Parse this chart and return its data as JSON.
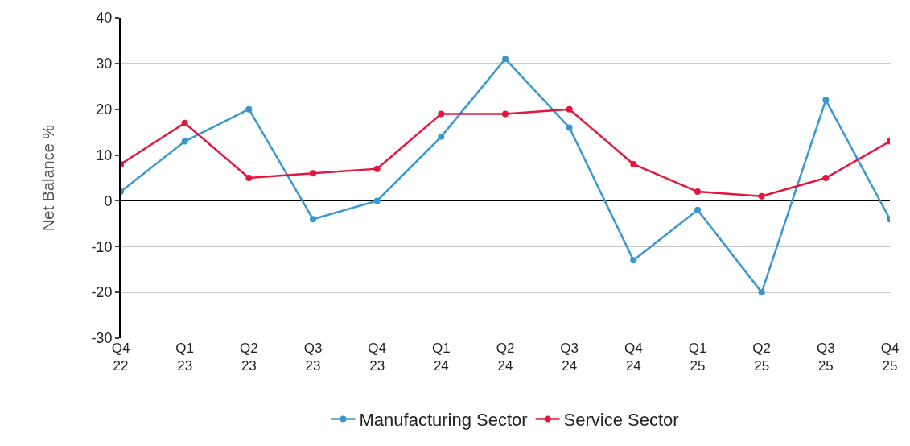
{
  "chart_data": {
    "type": "line",
    "ylabel": "Net Balance %",
    "categories": [
      "Q4\n22",
      "Q1\n23",
      "Q2\n23",
      "Q3\n23",
      "Q4\n23",
      "Q1\n24",
      "Q2\n24",
      "Q3\n24",
      "Q4\n24",
      "Q1\n25",
      "Q2\n25",
      "Q3\n25",
      "Q4\n25"
    ],
    "series": [
      {
        "name": "Manufacturing Sector",
        "color": "#3a98cf",
        "values": [
          2,
          13,
          20,
          -4,
          0,
          14,
          31,
          16,
          -13,
          -2,
          -20,
          22,
          -4
        ]
      },
      {
        "name": "Service Sector",
        "color": "#e3173e",
        "values": [
          8,
          17,
          5,
          6,
          7,
          19,
          19,
          20,
          8,
          2,
          1,
          5,
          13
        ]
      }
    ],
    "ylim": [
      -30,
      40
    ],
    "yticks": [
      -30,
      -20,
      -10,
      0,
      10,
      20,
      30,
      40
    ],
    "grid": "y",
    "legend": "bottom",
    "marker": "circle",
    "line_style": "solid"
  }
}
